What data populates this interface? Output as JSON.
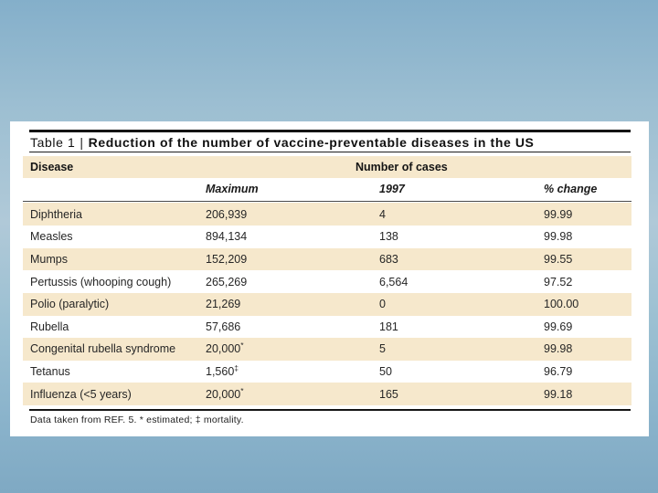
{
  "slide": {
    "type": "presentation-slide"
  },
  "colors": {
    "background_top": "#84afca",
    "background_middle": "#b0c9d8",
    "background_bottom": "#7fa9c3",
    "panel": "#ffffff",
    "band_beige": "#f6e8cc",
    "rule_black": "#141414",
    "text": "#262626"
  },
  "table": {
    "label": "Table 1",
    "separator": "|",
    "title": "Reduction of the number of vaccine-preventable diseases in the US",
    "columns": {
      "disease": "Disease",
      "group": "Number of cases",
      "sub": [
        "Maximum",
        "1997",
        "% change"
      ]
    },
    "rows": [
      {
        "disease": "Diphtheria",
        "maximum": "206,939",
        "y1997": "4",
        "change": "99.99"
      },
      {
        "disease": "Measles",
        "maximum": "894,134",
        "y1997": "138",
        "change": "99.98"
      },
      {
        "disease": "Mumps",
        "maximum": "152,209",
        "y1997": "683",
        "change": "99.55"
      },
      {
        "disease": "Pertussis (whooping cough)",
        "maximum": "265,269",
        "y1997": "6,564",
        "change": "97.52"
      },
      {
        "disease": "Polio (paralytic)",
        "maximum": "21,269",
        "y1997": "0",
        "change": "100.00"
      },
      {
        "disease": "Rubella",
        "maximum": "57,686",
        "y1997": "181",
        "change": "99.69"
      },
      {
        "disease": "Congenital rubella syndrome",
        "maximum": "20,000",
        "maximum_sup": "*",
        "y1997": "5",
        "change": "99.98"
      },
      {
        "disease": "Tetanus",
        "maximum": "1,560",
        "maximum_sup": "‡",
        "y1997": "50",
        "change": "96.79"
      },
      {
        "disease": "Influenza (<5 years)",
        "maximum": "20,000",
        "maximum_sup": "*",
        "y1997": "165",
        "change": "99.18"
      }
    ],
    "footnote": "Data taken from REF. 5. * estimated; ‡ mortality."
  },
  "chart_data": {
    "type": "table",
    "title": "Table 1 | Reduction of the number of vaccine-preventable diseases in the US",
    "categories": [
      "Diphtheria",
      "Measles",
      "Mumps",
      "Pertussis (whooping cough)",
      "Polio (paralytic)",
      "Rubella",
      "Congenital rubella syndrome",
      "Tetanus",
      "Influenza (<5 years)"
    ],
    "series": [
      {
        "name": "Maximum",
        "values": [
          206939,
          894134,
          152209,
          265269,
          21269,
          57686,
          20000,
          1560,
          20000
        ]
      },
      {
        "name": "1997",
        "values": [
          4,
          138,
          683,
          6564,
          0,
          181,
          5,
          50,
          165
        ]
      },
      {
        "name": "% change",
        "values": [
          99.99,
          99.98,
          99.55,
          97.52,
          100.0,
          99.69,
          99.98,
          96.79,
          99.18
        ]
      }
    ]
  }
}
